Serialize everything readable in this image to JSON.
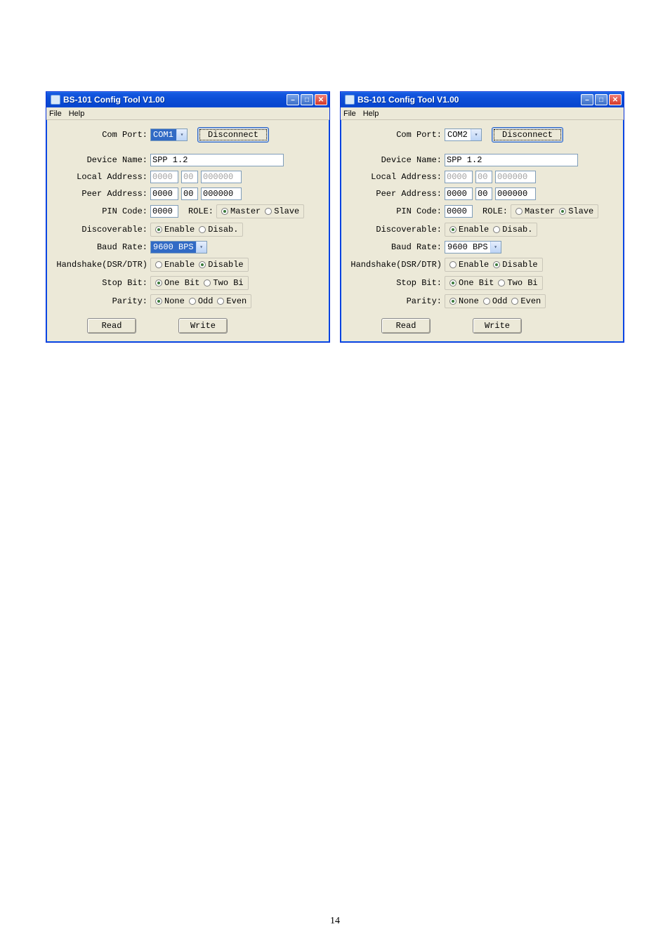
{
  "page_number": "14",
  "titlebar_bg": "#0d4fd8",
  "windows": [
    {
      "title": "BS-101 Config Tool V1.00",
      "menu": {
        "file": "File",
        "help": "Help"
      },
      "labels": {
        "com_port": "Com Port:",
        "device_name": "Device Name:",
        "local_address": "Local Address:",
        "peer_address": "Peer Address:",
        "pin_code": "PIN Code:",
        "role": "ROLE:",
        "discoverable": "Discoverable:",
        "baud_rate": "Baud Rate:",
        "handshake": "Handshake(DSR/DTR)",
        "stop_bit": "Stop Bit:",
        "parity": "Parity:"
      },
      "values": {
        "com_port": "COM1",
        "disconnect_btn": "Disconnect",
        "device_name": "SPP 1.2",
        "local_addr_a": "0000",
        "local_addr_b": "00",
        "local_addr_c": "000000",
        "peer_addr_a": "0000",
        "peer_addr_b": "00",
        "peer_addr_c": "000000",
        "pin_code": "0000",
        "baud_rate": "9600 BPS",
        "read_btn": "Read",
        "write_btn": "Write"
      },
      "radios": {
        "role": {
          "master": "Master",
          "slave": "Slave",
          "sel": "master"
        },
        "discoverable": {
          "enable": "Enable",
          "disable": "Disab.",
          "sel": "enable"
        },
        "handshake": {
          "enable": "Enable",
          "disable": "Disable",
          "sel": "disable"
        },
        "stop_bit": {
          "one": "One Bit",
          "two": "Two Bi",
          "sel": "one"
        },
        "parity": {
          "none": "None",
          "odd": "Odd",
          "even": "Even",
          "sel": "none"
        }
      },
      "com_hilite": true,
      "baud_hilite": true
    },
    {
      "title": "BS-101 Config Tool V1.00",
      "menu": {
        "file": "File",
        "help": "Help"
      },
      "labels": {
        "com_port": "Com Port:",
        "device_name": "Device Name:",
        "local_address": "Local Address:",
        "peer_address": "Peer Address:",
        "pin_code": "PIN Code:",
        "role": "ROLE:",
        "discoverable": "Discoverable:",
        "baud_rate": "Baud Rate:",
        "handshake": "Handshake(DSR/DTR)",
        "stop_bit": "Stop Bit:",
        "parity": "Parity:"
      },
      "values": {
        "com_port": "COM2",
        "disconnect_btn": "Disconnect",
        "device_name": "SPP 1.2",
        "local_addr_a": "0000",
        "local_addr_b": "00",
        "local_addr_c": "000000",
        "peer_addr_a": "0000",
        "peer_addr_b": "00",
        "peer_addr_c": "000000",
        "pin_code": "0000",
        "baud_rate": "9600 BPS",
        "read_btn": "Read",
        "write_btn": "Write"
      },
      "radios": {
        "role": {
          "master": "Master",
          "slave": "Slave",
          "sel": "slave"
        },
        "discoverable": {
          "enable": "Enable",
          "disable": "Disab.",
          "sel": "enable"
        },
        "handshake": {
          "enable": "Enable",
          "disable": "Disable",
          "sel": "disable"
        },
        "stop_bit": {
          "one": "One Bit",
          "two": "Two Bi",
          "sel": "one"
        },
        "parity": {
          "none": "None",
          "odd": "Odd",
          "even": "Even",
          "sel": "none"
        }
      },
      "com_hilite": false,
      "baud_hilite": false
    }
  ]
}
